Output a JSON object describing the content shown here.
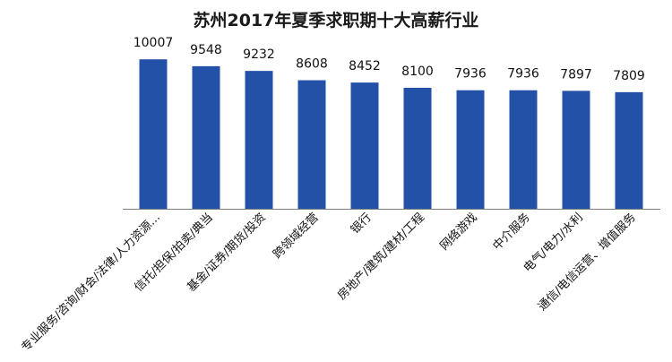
{
  "chart_data": {
    "type": "bar",
    "title": "苏州2017年夏季求职期十大高薪行业",
    "xlabel": "",
    "ylabel": "",
    "ylim": [
      0,
      10500
    ],
    "grid": false,
    "legend": "none",
    "bar_color": "#2351a8",
    "categories": [
      "专业服务/咨询/财会/法律/人力资源...",
      "信托/担保/拍卖/典当",
      "基金/证券/期货/投资",
      "跨领域经营",
      "银行",
      "房地产/建筑/建材/工程",
      "网络游戏",
      "中介服务",
      "电气/电力/水利",
      "通信/电信运营、增值服务"
    ],
    "values": [
      10007,
      9548,
      9232,
      8608,
      8452,
      8100,
      7936,
      7936,
      7897,
      7809
    ],
    "value_labels": [
      "10007",
      "9548",
      "9232",
      "8608",
      "8452",
      "8100",
      "7936",
      "7936",
      "7897",
      "7809"
    ]
  }
}
